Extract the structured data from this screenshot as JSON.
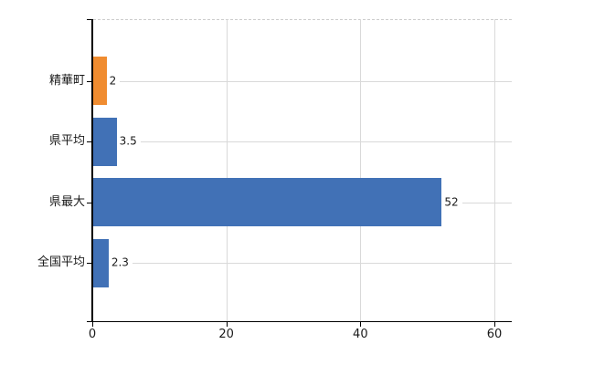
{
  "chart_data": {
    "type": "bar",
    "orientation": "horizontal",
    "title": "",
    "xlabel": "",
    "ylabel": "",
    "categories": [
      "精華町",
      "県平均",
      "県最大",
      "全国平均"
    ],
    "values": [
      2,
      3.5,
      52,
      2.3
    ],
    "value_labels": [
      "2",
      "3.5",
      "52",
      "2.3"
    ],
    "bar_colors": [
      "#f08c30",
      "#4171b6",
      "#4171b6",
      "#4171b6"
    ],
    "x_ticks": [
      0,
      20,
      40,
      60
    ],
    "x_tick_labels": [
      "0",
      "20",
      "40",
      "60"
    ],
    "xlim": [
      0,
      62.6
    ],
    "grid": "vertical gridlines at x ticks; horizontal leader line per category from value label to right edge; dashed top border",
    "legend": "none"
  },
  "colors": {
    "bar_highlight_orange": "#f08c30",
    "bar_blue": "#4171b6",
    "gridline": "#d9d9d9",
    "top_border": "#cccccc",
    "axis": "#000000",
    "text": "#1a1a1a",
    "background": "#ffffff"
  }
}
